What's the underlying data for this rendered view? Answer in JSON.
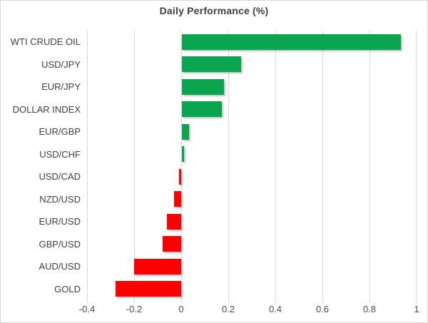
{
  "chart_data": {
    "type": "bar",
    "orientation": "horizontal",
    "title": "Daily Performance (%)",
    "categories": [
      "WTI CRUDE OIL",
      "USD/JPY",
      "EUR/JPY",
      "DOLLAR INDEX",
      "EUR/GBP",
      "USD/CHF",
      "USD/CAD",
      "NZD/USD",
      "EUR/USD",
      "GBP/USD",
      "AUD/USD",
      "GOLD"
    ],
    "values": [
      0.93,
      0.25,
      0.18,
      0.17,
      0.03,
      0.01,
      -0.01,
      -0.03,
      -0.06,
      -0.08,
      -0.2,
      -0.28
    ],
    "xlabel": "",
    "ylabel": "",
    "xlim": [
      -0.4,
      1.0
    ],
    "xticks": [
      -0.4,
      -0.2,
      0,
      0.2,
      0.4,
      0.6,
      0.8,
      1
    ],
    "xtick_labels": [
      "-0.4",
      "-0.2",
      "0",
      "0.2",
      "0.4",
      "0.6",
      "0.8",
      "1"
    ],
    "grid": true,
    "legend": false,
    "positive_color": "#0aa64f",
    "negative_color": "#ff0000",
    "gridline_color": "#d9d9d9",
    "text_color": "#404040"
  }
}
